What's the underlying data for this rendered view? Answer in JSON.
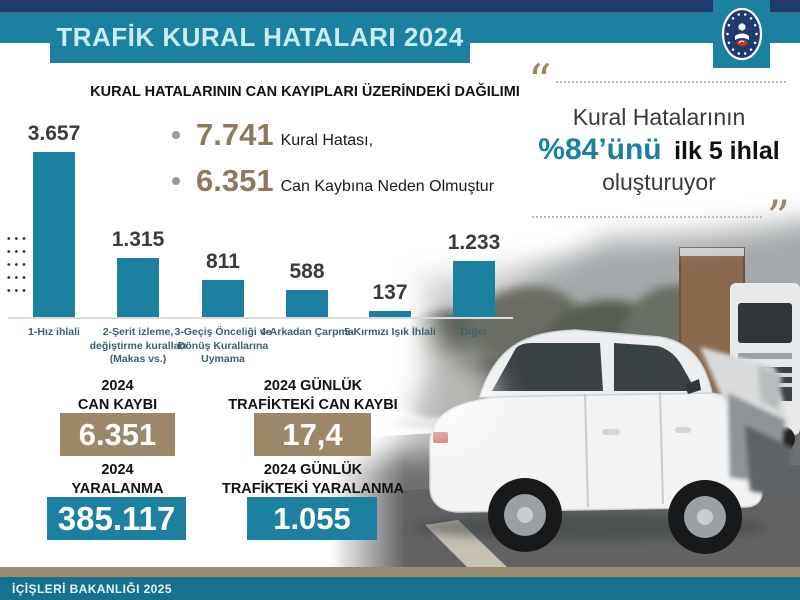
{
  "header": {
    "title": "TRAFİK KURAL HATALARI 2024",
    "emblem_icon": "ministry-of-interior-emblem"
  },
  "subtitle": "KURAL HATALARININ CAN KAYIPLARI ÜZERİNDEKİ DAĞILIMI",
  "bullets": [
    {
      "value": "7.741",
      "text": "Kural Hatası,"
    },
    {
      "value": "6.351",
      "text": "Can Kaybına Neden Olmuştur"
    }
  ],
  "quote": {
    "open_mark": "“",
    "line1": "Kural Hatalarının",
    "highlight": "%84’ünü",
    "line2_rest": "ilk 5 ihlal",
    "line3": "oluşturuyor",
    "close_mark": "”"
  },
  "chart_data": {
    "type": "bar",
    "title": "KURAL HATALARININ CAN KAYIPLARI ÜZERİNDEKİ DAĞILIMI",
    "categories": [
      "1-Hız ihlali",
      "2-Şerit izleme,\ndeğiştirme kuralları\n(Makas vs.)",
      "3-Geçiş Önceliği ve\nDönüş Kurallarına\nUymama",
      "4-Arkadan Çarpma",
      "5-Kırmızı Işık İhlali",
      "Diğer"
    ],
    "values": [
      3657,
      1315,
      811,
      588,
      137,
      1233
    ],
    "value_labels": [
      "3.657",
      "1.315",
      "811",
      "588",
      "137",
      "1.233"
    ],
    "xlabel": "",
    "ylabel": "",
    "ylim": [
      0,
      3700
    ],
    "grid": false,
    "legend": "none",
    "bar_color": "#1c80a0"
  },
  "stats": [
    {
      "label1": "2024",
      "label2": "CAN KAYBI",
      "value": "6.351"
    },
    {
      "label1": "2024 GÜNLÜK",
      "label2": "TRAFİKTEKİ CAN KAYBI",
      "value": "17,4"
    },
    {
      "label1": "2024",
      "label2": "YARALANMA",
      "value": "385.117"
    },
    {
      "label1": "2024 GÜNLÜK",
      "label2": "TRAFİKTEKİ YARALANMA",
      "value": "1.055"
    }
  ],
  "footer": {
    "text": "İÇİŞLERİ BAKANLIĞI 2025"
  },
  "colors": {
    "teal": "#1c80a0",
    "navy": "#213a6e",
    "taupe": "#9c8768",
    "taupe_text": "#8d7a5e",
    "title_text": "#c9edf5",
    "footer_teal": "#15718f"
  }
}
